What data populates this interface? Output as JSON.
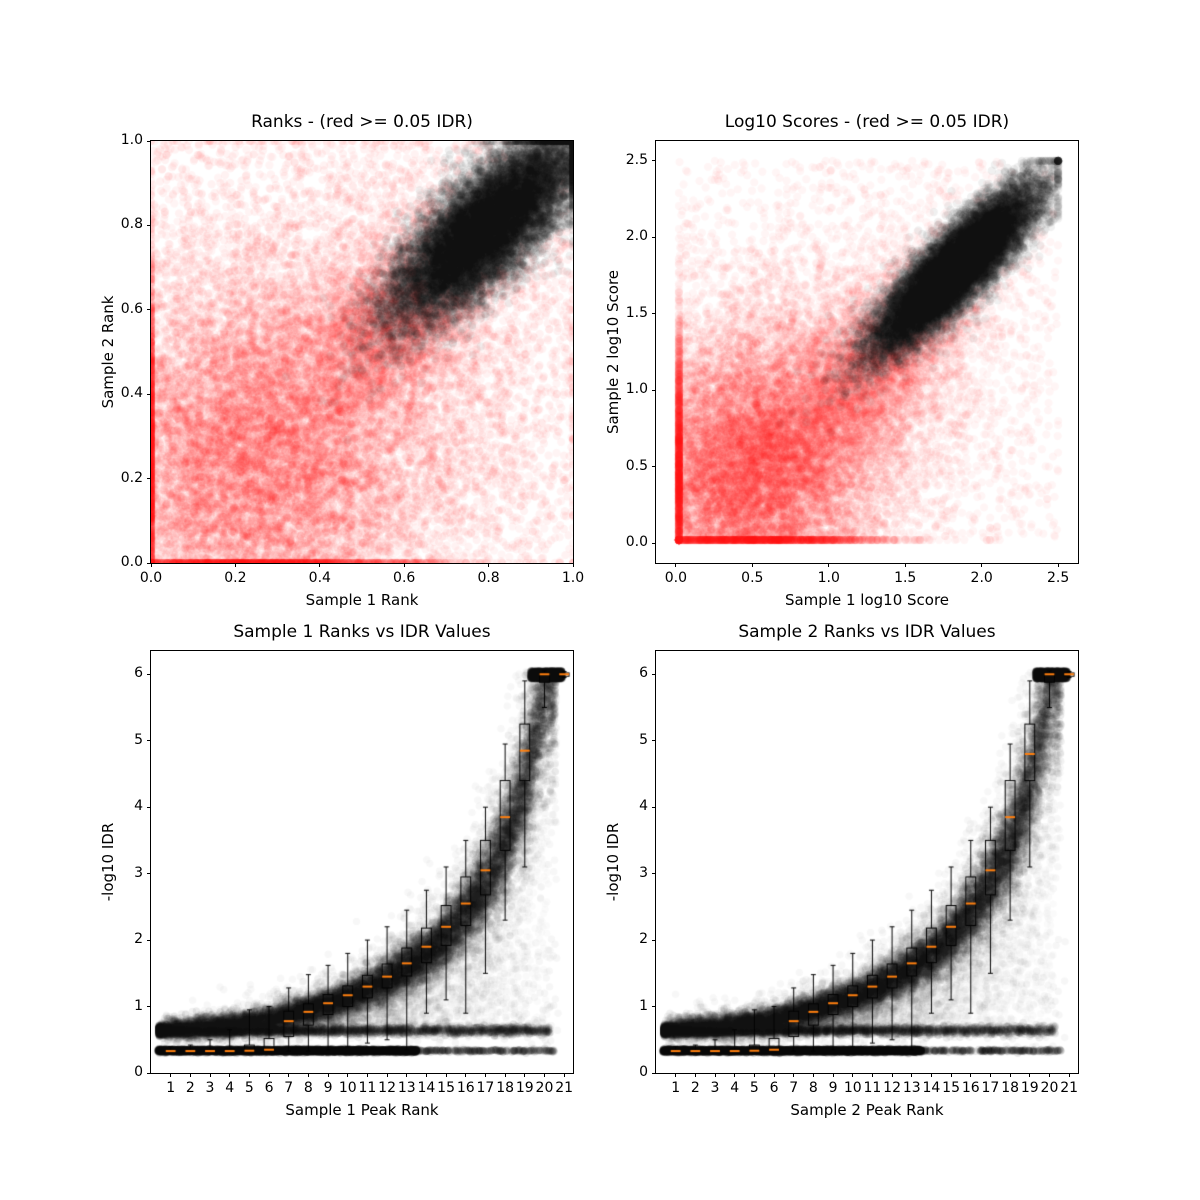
{
  "figure": {
    "background": "#ffffff"
  },
  "colors": {
    "irreproducible_red": "#ff0000",
    "reproducible_black": "#000000",
    "median_orange": "#ff7f0e"
  },
  "chart_data": [
    {
      "type": "scatter",
      "title": "Ranks - (red >= 0.05 IDR)",
      "xlabel": "Sample 1 Rank",
      "ylabel": "Sample 2 Rank",
      "xlim": [
        0,
        1
      ],
      "ylim": [
        0,
        1
      ],
      "xtick_labels": [
        "0.0",
        "0.2",
        "0.4",
        "0.6",
        "0.8",
        "1.0"
      ],
      "xtick_values": [
        0,
        0.2,
        0.4,
        0.6,
        0.8,
        1.0
      ],
      "ytick_labels": [
        "0.0",
        "0.2",
        "0.4",
        "0.6",
        "0.8",
        "1.0"
      ],
      "ytick_values": [
        0,
        0.2,
        0.4,
        0.6,
        0.8,
        1.0
      ],
      "marker": {
        "radius": 4.2
      },
      "seed": 11,
      "clusters": [
        {
          "kind": "gauss",
          "n": 9000,
          "cx": 0.22,
          "cy": 0.22,
          "sx": 0.21,
          "sy": 0.21,
          "color": "#ff0000",
          "alpha": 0.05,
          "clamp": [
            0,
            1
          ]
        },
        {
          "kind": "gauss",
          "n": 7000,
          "cx": 0.42,
          "cy": 0.42,
          "sx": 0.26,
          "sy": 0.26,
          "color": "#ff0000",
          "alpha": 0.045,
          "clamp": [
            0,
            1
          ]
        },
        {
          "kind": "uniform",
          "n": 2600,
          "x0": 0,
          "x1": 1,
          "y0": 0,
          "y1": 1,
          "color": "#ff0000",
          "alpha": 0.05
        },
        {
          "kind": "diag",
          "n": 3500,
          "cx": 0.58,
          "cy": 0.58,
          "along": 0.16,
          "perp": 0.09,
          "color": "#ff0000",
          "alpha": 0.04,
          "clamp": [
            0,
            1
          ]
        },
        {
          "kind": "diag",
          "n": 16000,
          "cx": 0.8,
          "cy": 0.8,
          "along": 0.155,
          "perp": 0.055,
          "color": "#000000",
          "alpha": 0.06,
          "clamp": [
            0,
            1
          ]
        }
      ]
    },
    {
      "type": "scatter",
      "title": "Log10 Scores - (red >= 0.05 IDR)",
      "xlabel": "Sample 1 log10 Score",
      "ylabel": "Sample 2 log10 Score",
      "xlim": [
        -0.13,
        2.63
      ],
      "ylim": [
        -0.13,
        2.63
      ],
      "xtick_labels": [
        "0.0",
        "0.5",
        "1.0",
        "1.5",
        "2.0",
        "2.5"
      ],
      "xtick_values": [
        0,
        0.5,
        1.0,
        1.5,
        2.0,
        2.5
      ],
      "ytick_labels": [
        "0.0",
        "0.5",
        "1.0",
        "1.5",
        "2.0",
        "2.5"
      ],
      "ytick_values": [
        0,
        0.5,
        1.0,
        1.5,
        2.0,
        2.5
      ],
      "marker": {
        "radius": 4.2
      },
      "seed": 22,
      "clusters": [
        {
          "kind": "gauss",
          "n": 8000,
          "cx": 0.45,
          "cy": 0.45,
          "sx": 0.4,
          "sy": 0.4,
          "color": "#ff0000",
          "alpha": 0.05,
          "clamp": [
            0.02,
            2.5
          ]
        },
        {
          "kind": "gauss",
          "n": 6000,
          "cx": 0.85,
          "cy": 0.85,
          "sx": 0.5,
          "sy": 0.5,
          "color": "#ff0000",
          "alpha": 0.04,
          "clamp": [
            0.02,
            2.5
          ]
        },
        {
          "kind": "uniform",
          "n": 1800,
          "x0": 0.02,
          "x1": 2.5,
          "y0": 0.02,
          "y1": 2.5,
          "color": "#ff0000",
          "alpha": 0.04
        },
        {
          "kind": "diag",
          "n": 4000,
          "cx": 1.35,
          "cy": 1.2,
          "along": 0.45,
          "perp": 0.22,
          "color": "#ff0000",
          "alpha": 0.035,
          "clamp": [
            0.02,
            2.5
          ]
        },
        {
          "kind": "diag",
          "n": 16000,
          "cx": 1.83,
          "cy": 1.8,
          "along": 0.37,
          "perp": 0.1,
          "color": "#000000",
          "alpha": 0.06,
          "clamp": [
            0.02,
            2.5
          ]
        }
      ]
    },
    {
      "type": "scatter_boxplot",
      "title": "Sample 1 Ranks vs IDR Values",
      "xlabel": "Sample 1 Peak Rank",
      "ylabel": "-log10 IDR",
      "xlim": [
        0,
        21.45
      ],
      "ylim": [
        0,
        6.35
      ],
      "xtick_labels": [
        "1",
        "2",
        "3",
        "4",
        "5",
        "6",
        "7",
        "8",
        "9",
        "10",
        "11",
        "12",
        "13",
        "14",
        "15",
        "16",
        "17",
        "18",
        "19",
        "20",
        "21"
      ],
      "xtick_values": [
        1,
        2,
        3,
        4,
        5,
        6,
        7,
        8,
        9,
        10,
        11,
        12,
        13,
        14,
        15,
        16,
        17,
        18,
        19,
        20,
        21
      ],
      "ytick_labels": [
        "0",
        "1",
        "2",
        "3",
        "4",
        "5",
        "6"
      ],
      "ytick_values": [
        0,
        1,
        2,
        3,
        4,
        5,
        6
      ],
      "median_color": "#ff7f0e",
      "marker": {
        "radius": 3.8
      },
      "seed": 33,
      "curve": [
        [
          0.5,
          0.66
        ],
        [
          2,
          0.68
        ],
        [
          4,
          0.72
        ],
        [
          6,
          0.8
        ],
        [
          8,
          0.95
        ],
        [
          10,
          1.13
        ],
        [
          12,
          1.4
        ],
        [
          14,
          1.78
        ],
        [
          15,
          2.05
        ],
        [
          16,
          2.42
        ],
        [
          17,
          2.85
        ],
        [
          18,
          3.45
        ],
        [
          19,
          4.3
        ],
        [
          19.6,
          5.1
        ],
        [
          20.1,
          5.95
        ],
        [
          20.6,
          6.02
        ]
      ],
      "clusters": [
        {
          "kind": "hband",
          "n": 6000,
          "x0": 0.35,
          "x1": 13.5,
          "y": 0.335,
          "sy": 0.012,
          "xpow": 1,
          "color": "#000000",
          "alpha": 0.12
        },
        {
          "kind": "hband",
          "n": 260,
          "x0": 13.5,
          "x1": 20.6,
          "y": 0.335,
          "sy": 0.01,
          "xpow": 1,
          "color": "#000000",
          "alpha": 0.1
        },
        {
          "kind": "hband",
          "n": 3800,
          "x0": 0.4,
          "x1": 20.3,
          "y": 0.64,
          "sy": 0.035,
          "xpow": 2.2,
          "color": "#000000",
          "alpha": 0.07
        },
        {
          "kind": "curve",
          "n": 14000,
          "xpow": 0.8,
          "noiseRel": 0.1,
          "noiseAbs": 0.05,
          "color": "#000000",
          "alpha": 0.055
        },
        {
          "kind": "curve",
          "n": 3500,
          "xpow": 0.45,
          "noiseRel": 0.22,
          "noiseAbs": 0.12,
          "color": "#000000",
          "alpha": 0.03
        },
        {
          "kind": "uniform",
          "n": 2200,
          "x0": 19.3,
          "x1": 20.9,
          "y0": 5.93,
          "y1": 6.05,
          "color": "#000000",
          "alpha": 0.08
        },
        {
          "kind": "fill",
          "n": 3000,
          "x0": 4,
          "x1": 20.2,
          "base": 0.7,
          "color": "#000000",
          "alpha": 0.018
        },
        {
          "kind": "uniform",
          "n": 220,
          "x0": 12,
          "x1": 20.8,
          "y0": 0.3,
          "y1": 2.1,
          "color": "#000000",
          "alpha": 0.035
        }
      ],
      "boxplots": [
        {
          "pos": 1,
          "med": 0.33,
          "q1": 0.325,
          "q3": 0.34,
          "lo": 0.32,
          "hi": 0.4
        },
        {
          "pos": 2,
          "med": 0.33,
          "q1": 0.325,
          "q3": 0.34,
          "lo": 0.32,
          "hi": 0.42
        },
        {
          "pos": 3,
          "med": 0.33,
          "q1": 0.325,
          "q3": 0.345,
          "lo": 0.32,
          "hi": 0.5
        },
        {
          "pos": 4,
          "med": 0.33,
          "q1": 0.325,
          "q3": 0.36,
          "lo": 0.32,
          "hi": 0.65
        },
        {
          "pos": 5,
          "med": 0.335,
          "q1": 0.325,
          "q3": 0.42,
          "lo": 0.32,
          "hi": 0.95
        },
        {
          "pos": 6,
          "med": 0.35,
          "q1": 0.33,
          "q3": 0.52,
          "lo": 0.32,
          "hi": 1.0
        },
        {
          "pos": 7,
          "med": 0.78,
          "q1": 0.55,
          "q3": 0.93,
          "lo": 0.33,
          "hi": 1.28
        },
        {
          "pos": 8,
          "med": 0.92,
          "q1": 0.72,
          "q3": 1.04,
          "lo": 0.33,
          "hi": 1.48
        },
        {
          "pos": 9,
          "med": 1.05,
          "q1": 0.88,
          "q3": 1.18,
          "lo": 0.35,
          "hi": 1.62
        },
        {
          "pos": 10,
          "med": 1.17,
          "q1": 1.0,
          "q3": 1.31,
          "lo": 0.4,
          "hi": 1.8
        },
        {
          "pos": 11,
          "med": 1.3,
          "q1": 1.13,
          "q3": 1.47,
          "lo": 0.45,
          "hi": 2.0
        },
        {
          "pos": 12,
          "med": 1.45,
          "q1": 1.28,
          "q3": 1.64,
          "lo": 0.5,
          "hi": 2.2
        },
        {
          "pos": 13,
          "med": 1.65,
          "q1": 1.46,
          "q3": 1.88,
          "lo": 0.35,
          "hi": 2.45
        },
        {
          "pos": 14,
          "med": 1.9,
          "q1": 1.66,
          "q3": 2.18,
          "lo": 0.9,
          "hi": 2.75
        },
        {
          "pos": 15,
          "med": 2.2,
          "q1": 1.92,
          "q3": 2.52,
          "lo": 1.1,
          "hi": 3.1
        },
        {
          "pos": 16,
          "med": 2.55,
          "q1": 2.22,
          "q3": 2.95,
          "lo": 0.9,
          "hi": 3.5
        },
        {
          "pos": 17,
          "med": 3.05,
          "q1": 2.68,
          "q3": 3.5,
          "lo": 1.5,
          "hi": 4.0
        },
        {
          "pos": 18,
          "med": 3.85,
          "q1": 3.35,
          "q3": 4.4,
          "lo": 2.3,
          "hi": 4.95
        },
        {
          "pos": 19,
          "med": 4.85,
          "q1": 4.4,
          "q3": 5.25,
          "lo": 3.1,
          "hi": 5.9
        },
        {
          "pos": 20,
          "med": 6.0,
          "q1": 5.88,
          "q3": 6.02,
          "lo": 5.5,
          "hi": 6.05
        },
        {
          "pos": 21,
          "med": 6.0,
          "q1": 5.97,
          "q3": 6.02,
          "lo": 5.95,
          "hi": 6.04
        }
      ]
    },
    {
      "type": "scatter_boxplot",
      "title": "Sample 2 Ranks vs IDR Values",
      "xlabel": "Sample 2 Peak Rank",
      "ylabel": "-log10 IDR",
      "xlim": [
        0,
        21.45
      ],
      "ylim": [
        0,
        6.35
      ],
      "xtick_labels": [
        "1",
        "2",
        "3",
        "4",
        "5",
        "6",
        "7",
        "8",
        "9",
        "10",
        "11",
        "12",
        "13",
        "14",
        "15",
        "16",
        "17",
        "18",
        "19",
        "20",
        "21"
      ],
      "xtick_values": [
        1,
        2,
        3,
        4,
        5,
        6,
        7,
        8,
        9,
        10,
        11,
        12,
        13,
        14,
        15,
        16,
        17,
        18,
        19,
        20,
        21
      ],
      "ytick_labels": [
        "0",
        "1",
        "2",
        "3",
        "4",
        "5",
        "6"
      ],
      "ytick_values": [
        0,
        1,
        2,
        3,
        4,
        5,
        6
      ],
      "median_color": "#ff7f0e",
      "marker": {
        "radius": 3.8
      },
      "seed": 44,
      "curve": [
        [
          0.5,
          0.66
        ],
        [
          2,
          0.68
        ],
        [
          4,
          0.72
        ],
        [
          6,
          0.8
        ],
        [
          8,
          0.95
        ],
        [
          10,
          1.13
        ],
        [
          12,
          1.4
        ],
        [
          14,
          1.78
        ],
        [
          15,
          2.05
        ],
        [
          16,
          2.42
        ],
        [
          17,
          2.85
        ],
        [
          18,
          3.45
        ],
        [
          19,
          4.3
        ],
        [
          19.6,
          5.1
        ],
        [
          20.1,
          5.95
        ],
        [
          20.6,
          6.02
        ]
      ],
      "clusters": [
        {
          "kind": "hband",
          "n": 6000,
          "x0": 0.35,
          "x1": 13.5,
          "y": 0.335,
          "sy": 0.012,
          "xpow": 1,
          "color": "#000000",
          "alpha": 0.12
        },
        {
          "kind": "hband",
          "n": 260,
          "x0": 13.5,
          "x1": 20.6,
          "y": 0.335,
          "sy": 0.01,
          "xpow": 1,
          "color": "#000000",
          "alpha": 0.1
        },
        {
          "kind": "hband",
          "n": 3800,
          "x0": 0.4,
          "x1": 20.3,
          "y": 0.64,
          "sy": 0.035,
          "xpow": 2.2,
          "color": "#000000",
          "alpha": 0.07
        },
        {
          "kind": "curve",
          "n": 14000,
          "xpow": 0.8,
          "noiseRel": 0.1,
          "noiseAbs": 0.05,
          "color": "#000000",
          "alpha": 0.055
        },
        {
          "kind": "curve",
          "n": 3500,
          "xpow": 0.45,
          "noiseRel": 0.22,
          "noiseAbs": 0.12,
          "color": "#000000",
          "alpha": 0.03
        },
        {
          "kind": "uniform",
          "n": 2200,
          "x0": 19.3,
          "x1": 20.9,
          "y0": 5.93,
          "y1": 6.05,
          "color": "#000000",
          "alpha": 0.08
        },
        {
          "kind": "fill",
          "n": 3000,
          "x0": 4,
          "x1": 20.2,
          "base": 0.7,
          "color": "#000000",
          "alpha": 0.018
        },
        {
          "kind": "uniform",
          "n": 220,
          "x0": 12,
          "x1": 20.8,
          "y0": 0.3,
          "y1": 2.1,
          "color": "#000000",
          "alpha": 0.035
        }
      ],
      "boxplots": [
        {
          "pos": 1,
          "med": 0.33,
          "q1": 0.325,
          "q3": 0.34,
          "lo": 0.32,
          "hi": 0.4
        },
        {
          "pos": 2,
          "med": 0.33,
          "q1": 0.325,
          "q3": 0.34,
          "lo": 0.32,
          "hi": 0.42
        },
        {
          "pos": 3,
          "med": 0.33,
          "q1": 0.325,
          "q3": 0.345,
          "lo": 0.32,
          "hi": 0.5
        },
        {
          "pos": 4,
          "med": 0.33,
          "q1": 0.325,
          "q3": 0.36,
          "lo": 0.32,
          "hi": 0.65
        },
        {
          "pos": 5,
          "med": 0.335,
          "q1": 0.325,
          "q3": 0.42,
          "lo": 0.32,
          "hi": 0.95
        },
        {
          "pos": 6,
          "med": 0.35,
          "q1": 0.33,
          "q3": 0.52,
          "lo": 0.32,
          "hi": 1.0
        },
        {
          "pos": 7,
          "med": 0.78,
          "q1": 0.55,
          "q3": 0.93,
          "lo": 0.33,
          "hi": 1.28
        },
        {
          "pos": 8,
          "med": 0.92,
          "q1": 0.72,
          "q3": 1.04,
          "lo": 0.33,
          "hi": 1.48
        },
        {
          "pos": 9,
          "med": 1.05,
          "q1": 0.88,
          "q3": 1.18,
          "lo": 0.35,
          "hi": 1.62
        },
        {
          "pos": 10,
          "med": 1.17,
          "q1": 1.0,
          "q3": 1.31,
          "lo": 0.4,
          "hi": 1.8
        },
        {
          "pos": 11,
          "med": 1.3,
          "q1": 1.13,
          "q3": 1.47,
          "lo": 0.45,
          "hi": 2.0
        },
        {
          "pos": 12,
          "med": 1.45,
          "q1": 1.28,
          "q3": 1.64,
          "lo": 0.5,
          "hi": 2.2
        },
        {
          "pos": 13,
          "med": 1.65,
          "q1": 1.46,
          "q3": 1.88,
          "lo": 0.35,
          "hi": 2.45
        },
        {
          "pos": 14,
          "med": 1.9,
          "q1": 1.66,
          "q3": 2.18,
          "lo": 0.9,
          "hi": 2.75
        },
        {
          "pos": 15,
          "med": 2.2,
          "q1": 1.92,
          "q3": 2.52,
          "lo": 1.1,
          "hi": 3.1
        },
        {
          "pos": 16,
          "med": 2.55,
          "q1": 2.22,
          "q3": 2.95,
          "lo": 0.9,
          "hi": 3.5
        },
        {
          "pos": 17,
          "med": 3.05,
          "q1": 2.68,
          "q3": 3.5,
          "lo": 1.5,
          "hi": 4.0
        },
        {
          "pos": 18,
          "med": 3.85,
          "q1": 3.35,
          "q3": 4.4,
          "lo": 2.3,
          "hi": 4.95
        },
        {
          "pos": 19,
          "med": 4.8,
          "q1": 4.4,
          "q3": 5.25,
          "lo": 3.1,
          "hi": 5.9
        },
        {
          "pos": 20,
          "med": 6.0,
          "q1": 5.88,
          "q3": 6.02,
          "lo": 5.5,
          "hi": 6.05
        },
        {
          "pos": 21,
          "med": 6.0,
          "q1": 5.97,
          "q3": 6.02,
          "lo": 5.95,
          "hi": 6.04
        }
      ]
    }
  ]
}
